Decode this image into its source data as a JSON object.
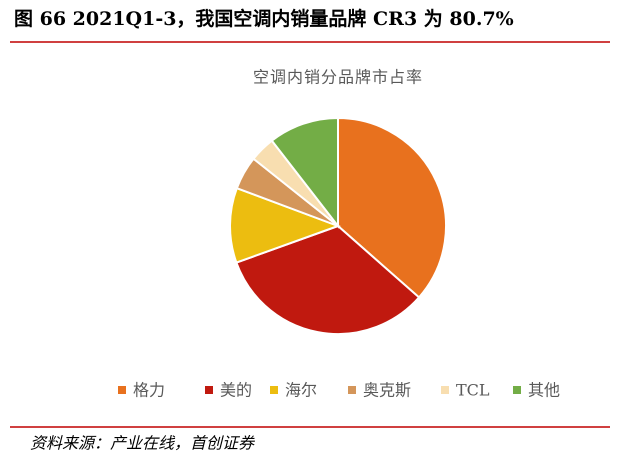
{
  "header": {
    "title": "图 66 2021Q1-3，我国空调内销量品牌 CR3 为 80.7%"
  },
  "chart_data": {
    "type": "pie",
    "title": "空调内销分品牌市占率",
    "categories": [
      "格力",
      "美的",
      "海尔",
      "奥克斯",
      "TCL",
      "其他"
    ],
    "values": [
      36.5,
      33,
      11.2,
      5,
      3.8,
      10.5
    ],
    "colors": [
      "#e8711e",
      "#c0190f",
      "#ecbd10",
      "#d4965a",
      "#f8deb0",
      "#73ad46"
    ],
    "legend": "bottom"
  },
  "source": "资料来源：产业在线，首创证券"
}
